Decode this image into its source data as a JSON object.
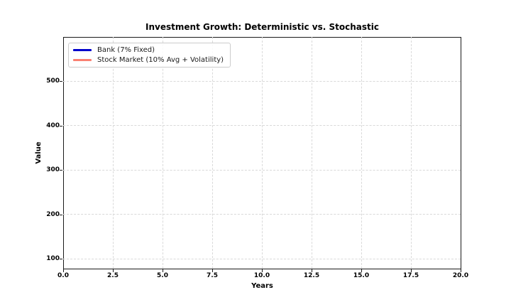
{
  "chart_data": {
    "type": "line",
    "title": "Investment Growth: Deterministic vs. Stochastic",
    "xlabel": "Years",
    "ylabel": "Value",
    "xlim": [
      0.0,
      20.0
    ],
    "ylim": [
      78,
      600
    ],
    "x_ticks": [
      0.0,
      2.5,
      5.0,
      7.5,
      10.0,
      12.5,
      15.0,
      17.5,
      20.0
    ],
    "x_tick_labels": [
      "0.0",
      "2.5",
      "5.0",
      "7.5",
      "10.0",
      "12.5",
      "15.0",
      "17.5",
      "20.0"
    ],
    "y_ticks": [
      100,
      200,
      300,
      400,
      500
    ],
    "y_tick_labels": [
      "100",
      "200",
      "300",
      "400",
      "500"
    ],
    "grid": true,
    "grid_linestyle": "dashed",
    "grid_color": "#d9d9d9",
    "frame_color": "#1a1a1a",
    "background_color": "#ffffff",
    "legend_position": "upper left",
    "series": [
      {
        "name": "Bank (7% Fixed)",
        "color": "#0000CC",
        "x": [],
        "values": []
      },
      {
        "name": "Stock Market (10% Avg + Volatility)",
        "color": "#FA8072",
        "x": [],
        "values": []
      }
    ]
  }
}
